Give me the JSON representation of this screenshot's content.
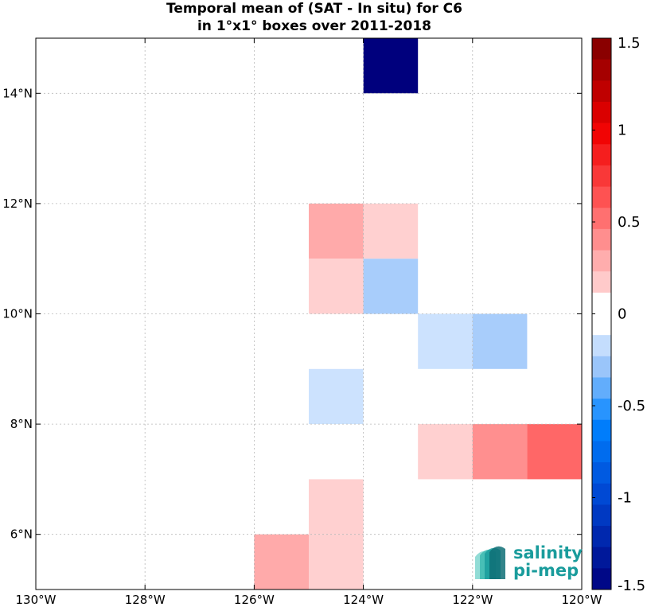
{
  "chart_data": {
    "type": "heatmap",
    "title": [
      "Temporal mean of (SAT - In situ) for C6",
      "in 1°x1° boxes over 2011-2018"
    ],
    "xlim": [
      -130,
      -120
    ],
    "ylim": [
      5,
      15
    ],
    "grid": true,
    "x_ticks": [
      {
        "value": -130,
        "label": "130°W"
      },
      {
        "value": -128,
        "label": "128°W"
      },
      {
        "value": -126,
        "label": "126°W"
      },
      {
        "value": -124,
        "label": "124°W"
      },
      {
        "value": -122,
        "label": "122°W"
      },
      {
        "value": -120,
        "label": "120°W"
      }
    ],
    "y_ticks": [
      {
        "value": 6,
        "label": "6°N"
      },
      {
        "value": 8,
        "label": "8°N"
      },
      {
        "value": 10,
        "label": "10°N"
      },
      {
        "value": 12,
        "label": "12°N"
      },
      {
        "value": 14,
        "label": "14°N"
      }
    ],
    "cells": [
      {
        "lon": -124,
        "lat": 14,
        "value": -1.5
      },
      {
        "lon": -125,
        "lat": 11,
        "value": 0.3
      },
      {
        "lon": -124,
        "lat": 11,
        "value": 0.15
      },
      {
        "lon": -125,
        "lat": 10,
        "value": 0.15
      },
      {
        "lon": -124,
        "lat": 10,
        "value": -0.25
      },
      {
        "lon": -123,
        "lat": 9,
        "value": -0.15
      },
      {
        "lon": -122,
        "lat": 9,
        "value": -0.25
      },
      {
        "lon": -125,
        "lat": 8,
        "value": -0.15
      },
      {
        "lon": -123,
        "lat": 7,
        "value": 0.15
      },
      {
        "lon": -122,
        "lat": 7,
        "value": 0.4
      },
      {
        "lon": -121,
        "lat": 7,
        "value": 0.55
      },
      {
        "lon": -125,
        "lat": 6,
        "value": 0.15
      },
      {
        "lon": -126,
        "lat": 5,
        "value": 0.3
      },
      {
        "lon": -125,
        "lat": 5,
        "value": 0.15
      }
    ],
    "colorbar": {
      "range": [
        -1.5,
        1.5
      ],
      "ticks": [
        {
          "value": 1.5,
          "label": "1.5"
        },
        {
          "value": 1,
          "label": "1"
        },
        {
          "value": 0.5,
          "label": "0.5"
        },
        {
          "value": 0,
          "label": "0"
        },
        {
          "value": -0.5,
          "label": "-0.5"
        },
        {
          "value": -1,
          "label": "-1"
        },
        {
          "value": -1.5,
          "label": "-1.5"
        }
      ]
    }
  },
  "logo": {
    "line1": "salinity",
    "line2": "pi-mep",
    "color": "#1a9c9c",
    "dark": "#0e4b56"
  }
}
